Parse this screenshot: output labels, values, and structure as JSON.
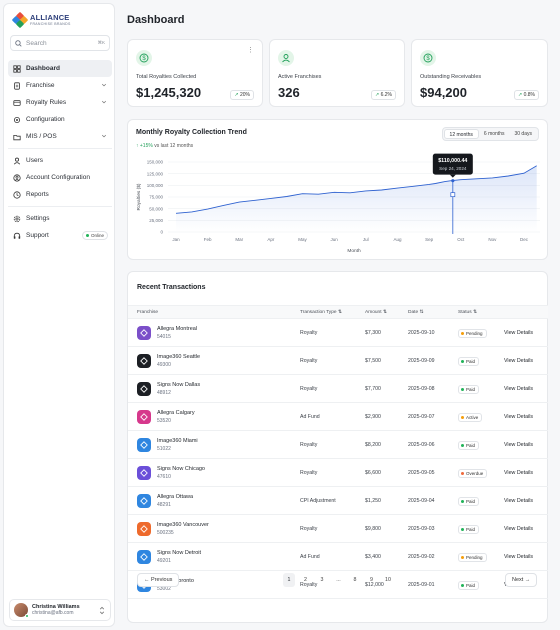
{
  "brand": {
    "name": "ALLIANCE",
    "tagline": "FRANCHISE BRANDS"
  },
  "search": {
    "placeholder": "Search",
    "shortcut": "⌘K"
  },
  "nav": {
    "items": [
      {
        "label": "Dashboard",
        "icon": "grid-icon",
        "active": true
      },
      {
        "label": "Franchise",
        "icon": "document-icon",
        "has_chevron": true
      },
      {
        "label": "Royalty Rules",
        "icon": "card-icon",
        "has_chevron": true
      },
      {
        "label": "Configuration",
        "icon": "gear-icon"
      },
      {
        "label": "MIS / POS",
        "icon": "folder-icon",
        "has_chevron": true
      }
    ],
    "items2": [
      {
        "label": "Users",
        "icon": "users-icon"
      },
      {
        "label": "Account Configuration",
        "icon": "account-icon"
      },
      {
        "label": "Reports",
        "icon": "clock-icon"
      }
    ],
    "items3": [
      {
        "label": "Settings",
        "icon": "settings-icon"
      },
      {
        "label": "Support",
        "icon": "headset-icon",
        "badge": "Online"
      }
    ]
  },
  "user": {
    "name": "Christina Williams",
    "email": "christina@afb.com"
  },
  "page": {
    "title": "Dashboard"
  },
  "stats": [
    {
      "label": "Total Royalties Collected",
      "value": "$1,245,320",
      "change": "20%",
      "icon": "dollar-icon"
    },
    {
      "label": "Active Franchises",
      "value": "326",
      "change": "6.2%",
      "icon": "user-icon"
    },
    {
      "label": "Outstanding Receivables",
      "value": "$94,200",
      "change": "0.8%",
      "icon": "dollar-icon"
    }
  ],
  "chart": {
    "title": "Monthly Royalty Collection Trend",
    "delta": "+15%",
    "delta_text": "vs last 12 months",
    "ranges": [
      "12 months",
      "6 months",
      "30 days"
    ],
    "selected_range": "12 months",
    "tooltip": {
      "value": "$110,000.44",
      "date": "Sep 24, 2024"
    }
  },
  "chart_data": {
    "type": "area",
    "title": "Monthly Royalty Collection Trend",
    "xlabel": "Month",
    "ylabel": "Royalties ($)",
    "categories": [
      "Jan",
      "Feb",
      "Mar",
      "Apr",
      "May",
      "Jun",
      "Jul",
      "Aug",
      "Sep",
      "Oct",
      "Nov",
      "Dec"
    ],
    "yticks": [
      "0",
      "25,000",
      "50,000",
      "75,000",
      "100,000",
      "125,000",
      "150,000"
    ],
    "ylim": [
      0,
      150000
    ],
    "x": [
      0,
      0.5,
      1,
      1.5,
      2,
      2.5,
      3,
      3.5,
      4,
      4.5,
      5,
      5.5,
      6,
      6.5,
      7,
      7.5,
      8,
      8.2,
      8.5,
      8.7,
      9,
      9.5,
      10,
      10.5,
      11,
      11.4
    ],
    "values": [
      40000,
      43000,
      49000,
      57000,
      64000,
      68000,
      72000,
      76000,
      82000,
      81000,
      85000,
      84000,
      88000,
      90000,
      94000,
      98000,
      102000,
      104000,
      108000,
      110000,
      112000,
      114000,
      116000,
      120000,
      126000,
      142000
    ],
    "grid": true
  },
  "transactions": {
    "title": "Recent Transactions",
    "columns": [
      "Franchise",
      "Transaction Type",
      "Amount",
      "Date",
      "Status",
      ""
    ],
    "action_label": "View Details",
    "rows": [
      {
        "name": "Allegra Montreal",
        "id": "54015",
        "type": "Royalty",
        "amount": "$7,300",
        "date": "2025-09-10",
        "status": "Pending",
        "color": "#7b4fc9"
      },
      {
        "name": "Image360 Seattle",
        "id": "49300",
        "type": "Royalty",
        "amount": "$7,500",
        "date": "2025-09-09",
        "status": "Paid",
        "color": "#1c1f24"
      },
      {
        "name": "Signs Now Dallas",
        "id": "48912",
        "type": "Royalty",
        "amount": "$7,700",
        "date": "2025-09-08",
        "status": "Paid",
        "color": "#1c1f24"
      },
      {
        "name": "Allegra Calgary",
        "id": "53520",
        "type": "Ad Fund",
        "amount": "$2,900",
        "date": "2025-09-07",
        "status": "Active",
        "color": "#d6388c"
      },
      {
        "name": "Image360 Miami",
        "id": "51022",
        "type": "Royalty",
        "amount": "$8,200",
        "date": "2025-09-06",
        "status": "Paid",
        "color": "#2f86e0"
      },
      {
        "name": "Signs Now Chicago",
        "id": "47610",
        "type": "Royalty",
        "amount": "$6,600",
        "date": "2025-09-05",
        "status": "Overdue",
        "color": "#6b4fd9"
      },
      {
        "name": "Allegra Ottawa",
        "id": "48291",
        "type": "CPI Adjustment",
        "amount": "$1,250",
        "date": "2025-09-04",
        "status": "Paid",
        "color": "#2f86e0"
      },
      {
        "name": "Image360 Vancouver",
        "id": "500235",
        "type": "Royalty",
        "amount": "$9,800",
        "date": "2025-09-03",
        "status": "Paid",
        "color": "#ee6a2c"
      },
      {
        "name": "Signs Now Detroit",
        "id": "49201",
        "type": "Ad Fund",
        "amount": "$3,400",
        "date": "2025-09-02",
        "status": "Pending",
        "color": "#2f86e0"
      },
      {
        "name": "Allegra Toronto",
        "id": "53002",
        "type": "Royalty",
        "amount": "$12,000",
        "date": "2025-09-01",
        "status": "Paid",
        "color": "#2f86e0"
      }
    ]
  },
  "pagination": {
    "prev": "Previous",
    "next": "Next",
    "pages": [
      "1",
      "2",
      "3",
      "...",
      "8",
      "9",
      "10"
    ],
    "current": "1"
  },
  "status_colors": {
    "Pending": "#f59e0b",
    "Paid": "#22b35a",
    "Active": "#f59e0b",
    "Overdue": "#ef6a3c"
  }
}
